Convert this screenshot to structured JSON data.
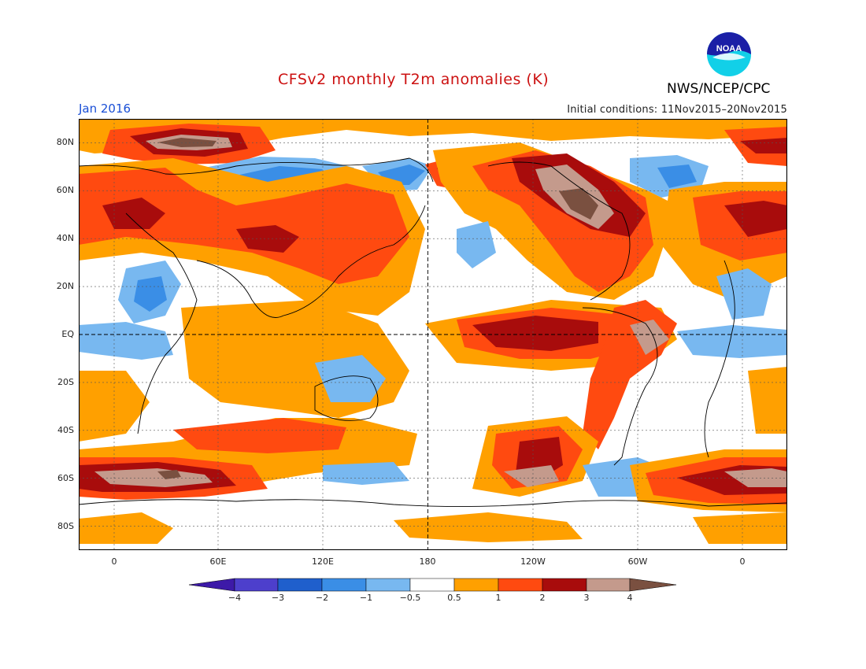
{
  "header": {
    "title": "CFSv2 monthly T2m anomalies (K)",
    "month": "Jan 2016",
    "initial_conditions": "Initial conditions: 11Nov2015–20Nov2015",
    "agency": "NWS/NCEP/CPC",
    "logo_text": "NOAA"
  },
  "map": {
    "y_ticks": [
      "80N",
      "60N",
      "40N",
      "20N",
      "EQ",
      "20S",
      "40S",
      "60S",
      "80S"
    ],
    "x_ticks": [
      "0",
      "60E",
      "120E",
      "180",
      "120W",
      "60W",
      "0"
    ]
  },
  "colorbar": {
    "labels": [
      "−4",
      "−3",
      "−2",
      "−1",
      "−0.5",
      "0.5",
      "1",
      "2",
      "3",
      "4"
    ],
    "colors": {
      "lt_m4": "#3d1aa8",
      "m4_m3": "#4d3fcc",
      "m3_m2": "#1f5fcc",
      "m2_m1": "#3a8ee6",
      "m1_m05": "#78b8f0",
      "m05_05": "#ffffff",
      "05_1": "#ffa000",
      "1_2": "#ff4a10",
      "2_3": "#a80c0c",
      "3_4": "#c49a8c",
      "gt_4": "#7a5040"
    }
  }
}
